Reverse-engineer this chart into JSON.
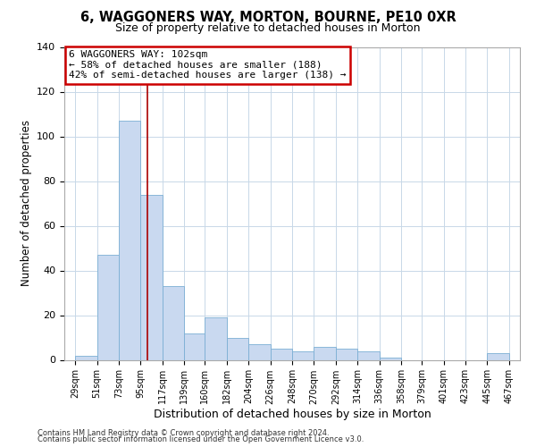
{
  "title": "6, WAGGONERS WAY, MORTON, BOURNE, PE10 0XR",
  "subtitle": "Size of property relative to detached houses in Morton",
  "xlabel": "Distribution of detached houses by size in Morton",
  "ylabel": "Number of detached properties",
  "bar_color": "#c9d9f0",
  "bar_edge_color": "#7bafd4",
  "background_color": "#ffffff",
  "grid_color": "#c8d8e8",
  "vline_x": 102,
  "vline_color": "#aa0000",
  "annotation_title": "6 WAGGONERS WAY: 102sqm",
  "annotation_line1": "← 58% of detached houses are smaller (188)",
  "annotation_line2": "42% of semi-detached houses are larger (138) →",
  "annotation_box_facecolor": "#ffffff",
  "annotation_box_edgecolor": "#cc0000",
  "bins": [
    29,
    51,
    73,
    95,
    117,
    139,
    160,
    182,
    204,
    226,
    248,
    270,
    292,
    314,
    336,
    358,
    379,
    401,
    423,
    445,
    467
  ],
  "counts": [
    2,
    47,
    107,
    74,
    33,
    12,
    19,
    10,
    7,
    5,
    4,
    6,
    5,
    4,
    1,
    0,
    0,
    0,
    0,
    3
  ],
  "ylim": [
    0,
    140
  ],
  "yticks": [
    0,
    20,
    40,
    60,
    80,
    100,
    120,
    140
  ],
  "footnote1": "Contains HM Land Registry data © Crown copyright and database right 2024.",
  "footnote2": "Contains public sector information licensed under the Open Government Licence v3.0."
}
